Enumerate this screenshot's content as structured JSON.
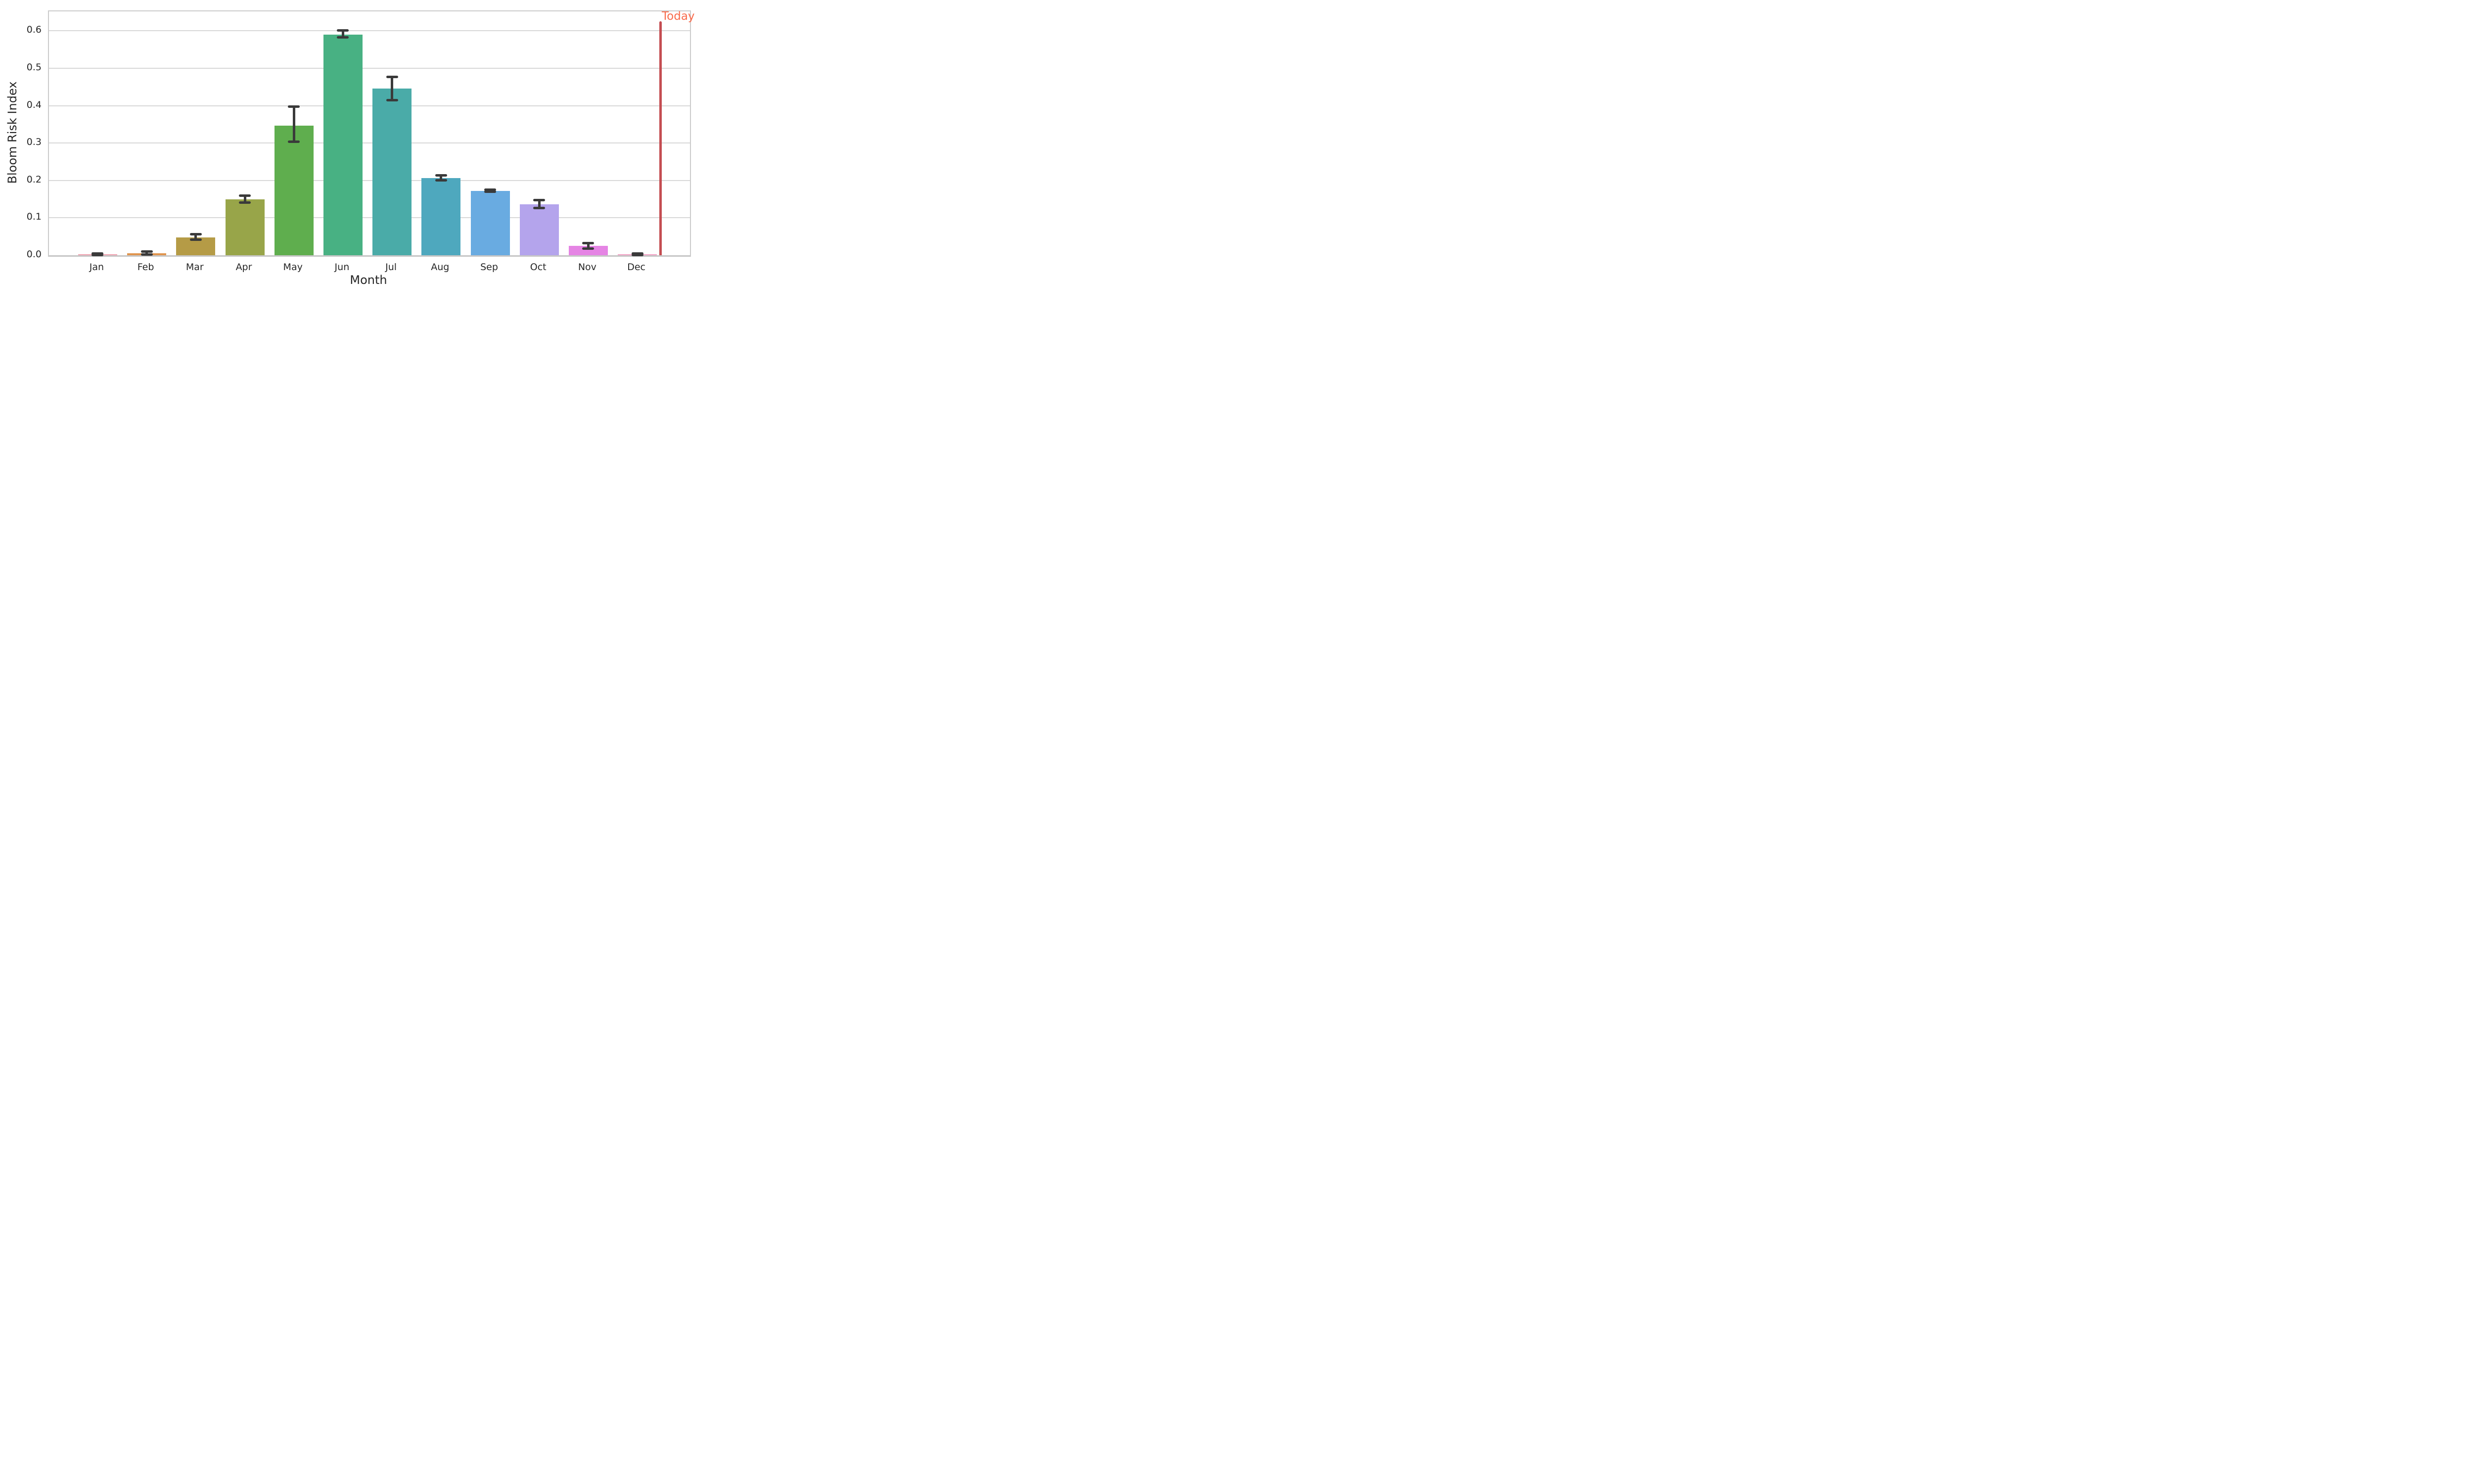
{
  "chart_data": {
    "type": "bar",
    "title": "",
    "xlabel": "Month",
    "ylabel": "Bloom Risk Index",
    "categories": [
      "Jan",
      "Feb",
      "Mar",
      "Apr",
      "May",
      "Jun",
      "Jul",
      "Aug",
      "Sep",
      "Oct",
      "Nov",
      "Dec"
    ],
    "values": [
      0.002,
      0.005,
      0.047,
      0.149,
      0.347,
      0.59,
      0.446,
      0.206,
      0.172,
      0.136,
      0.025,
      0.002
    ],
    "error_low": [
      0.001,
      0.002,
      0.041,
      0.141,
      0.304,
      0.583,
      0.415,
      0.2,
      0.17,
      0.126,
      0.018,
      0.001
    ],
    "error_high": [
      0.005,
      0.01,
      0.056,
      0.159,
      0.397,
      0.601,
      0.477,
      0.213,
      0.175,
      0.147,
      0.033,
      0.005
    ],
    "bar_colors": [
      "#f0a0ae",
      "#e0954e",
      "#b59b46",
      "#98a549",
      "#5fae4e",
      "#48b183",
      "#4aaba8",
      "#4ea8be",
      "#69abe1",
      "#b4a4ec",
      "#e584e4",
      "#f2a0c4"
    ],
    "error_bar_color": "#3a3a3a",
    "yticks": [
      "0.0",
      "0.1",
      "0.2",
      "0.3",
      "0.4",
      "0.5",
      "0.6"
    ],
    "ytick_values": [
      0.0,
      0.1,
      0.2,
      0.3,
      0.4,
      0.5,
      0.6
    ],
    "ylim": [
      0,
      0.652
    ],
    "grid": "horizontal",
    "grid_color": "#d8d8d8",
    "spine_color": "#cbcbcb",
    "text_color": "#262626",
    "legend": "none",
    "annotation": {
      "label": "Today",
      "label_color": "#f96b4c",
      "line_color": "#c44d52",
      "line_top_value": 0.625,
      "x_category_position": 11.47
    }
  }
}
